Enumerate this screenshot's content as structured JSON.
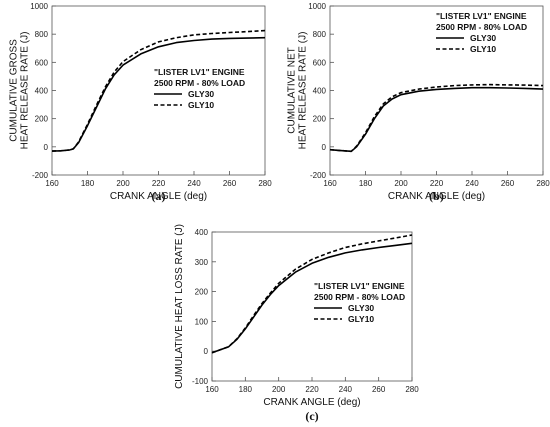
{
  "chart_data": [
    {
      "type": "line",
      "panel_label": "(a)",
      "xlabel": "CRANK ANGLE (deg)",
      "ylabel": [
        "CUMULATIVE GROSS",
        "HEAT RELEASE RATE (J)"
      ],
      "xlim": [
        160,
        280
      ],
      "ylim": [
        -200,
        1000
      ],
      "xticks": [
        160,
        180,
        200,
        220,
        240,
        260,
        280
      ],
      "yticks": [
        -200,
        0,
        200,
        400,
        600,
        800,
        1000
      ],
      "legend_title": [
        "\"LISTER LV1\" ENGINE",
        "2500 RPM - 80% LOAD"
      ],
      "legend_position": "right-center",
      "x": [
        160,
        165,
        170,
        172,
        175,
        180,
        185,
        190,
        195,
        200,
        210,
        220,
        230,
        240,
        250,
        260,
        270,
        280
      ],
      "series": [
        {
          "name": "GLY30",
          "style": "solid",
          "values": [
            -30,
            -28,
            -22,
            -15,
            30,
            150,
            280,
            410,
            510,
            580,
            660,
            710,
            740,
            755,
            765,
            770,
            772,
            775
          ]
        },
        {
          "name": "GLY10",
          "style": "dashed",
          "values": [
            -30,
            -28,
            -22,
            -15,
            35,
            160,
            295,
            425,
            530,
            605,
            690,
            745,
            775,
            795,
            805,
            812,
            818,
            825
          ]
        }
      ]
    },
    {
      "type": "line",
      "panel_label": "(b)",
      "xlabel": "CRANK ANGLE (deg)",
      "ylabel": [
        "CUMULATIVE NET",
        "HEAT RELEASE RATE (J)"
      ],
      "xlim": [
        160,
        280
      ],
      "ylim": [
        -200,
        1000
      ],
      "xticks": [
        160,
        180,
        200,
        220,
        240,
        260,
        280
      ],
      "yticks": [
        -200,
        0,
        200,
        400,
        600,
        800,
        1000
      ],
      "legend_title": [
        "\"LISTER LV1\" ENGINE",
        "2500 RPM - 80% LOAD"
      ],
      "legend_position": "top-right",
      "x": [
        160,
        165,
        170,
        172,
        175,
        180,
        185,
        190,
        195,
        200,
        210,
        220,
        230,
        240,
        250,
        260,
        270,
        280
      ],
      "series": [
        {
          "name": "GLY30",
          "style": "solid",
          "values": [
            -20,
            -25,
            -30,
            -32,
            0,
            90,
            200,
            290,
            340,
            370,
            395,
            408,
            415,
            420,
            420,
            418,
            415,
            410
          ]
        },
        {
          "name": "GLY10",
          "style": "dashed",
          "values": [
            -20,
            -25,
            -30,
            -32,
            5,
            100,
            215,
            305,
            355,
            385,
            410,
            425,
            435,
            440,
            442,
            440,
            438,
            435
          ]
        }
      ]
    },
    {
      "type": "line",
      "panel_label": "(c)",
      "xlabel": "CRANK ANGLE (deg)",
      "ylabel": [
        "CUMULATIVE HEAT LOSS RATE (J)"
      ],
      "xlim": [
        160,
        280
      ],
      "ylim": [
        -100,
        400
      ],
      "xticks": [
        160,
        180,
        200,
        220,
        240,
        260,
        280
      ],
      "yticks": [
        -100,
        0,
        100,
        200,
        300,
        400
      ],
      "legend_title": [
        "\"LISTER LV1\" ENGINE",
        "2500 RPM - 80% LOAD"
      ],
      "legend_position": "right-center",
      "x": [
        160,
        165,
        170,
        175,
        180,
        185,
        190,
        195,
        200,
        210,
        220,
        230,
        240,
        250,
        260,
        270,
        280
      ],
      "series": [
        {
          "name": "GLY30",
          "style": "solid",
          "values": [
            -5,
            5,
            15,
            40,
            75,
            115,
            155,
            190,
            220,
            265,
            295,
            315,
            330,
            340,
            348,
            355,
            362
          ]
        },
        {
          "name": "GLY10",
          "style": "dashed",
          "values": [
            -5,
            5,
            15,
            42,
            78,
            120,
            160,
            195,
            228,
            275,
            308,
            330,
            348,
            360,
            370,
            380,
            390
          ]
        }
      ]
    }
  ]
}
